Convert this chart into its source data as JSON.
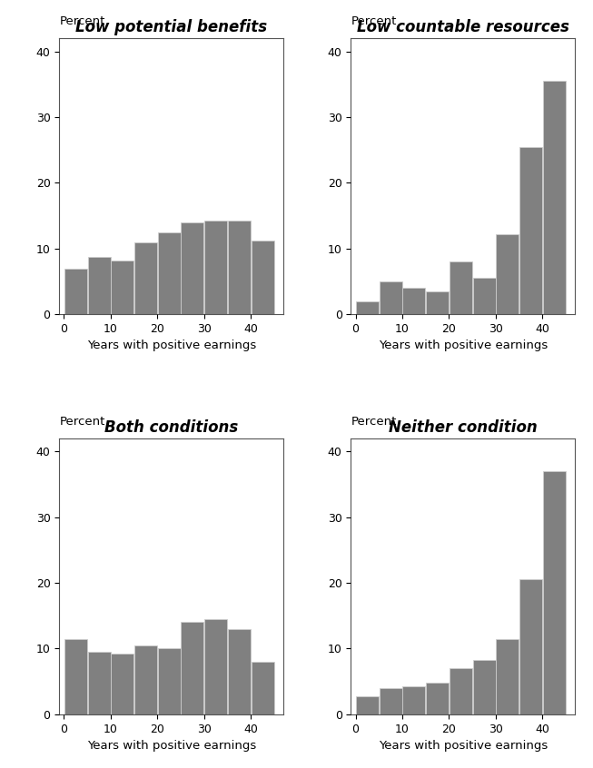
{
  "panels": [
    {
      "title": "Low potential benefits",
      "values": [
        7.0,
        8.8,
        8.2,
        11.0,
        12.5,
        14.0,
        14.2,
        14.2,
        11.2
      ],
      "ylabel": "Percent",
      "xlabel": "Years with positive earnings",
      "ylim": [
        0,
        42
      ],
      "yticks": [
        0,
        10,
        20,
        30,
        40
      ]
    },
    {
      "title": "Low countable resources",
      "values": [
        2.0,
        5.0,
        4.0,
        3.5,
        8.0,
        5.5,
        12.2,
        25.5,
        35.5
      ],
      "ylabel": "Percent",
      "xlabel": "Years with positive earnings",
      "ylim": [
        0,
        42
      ],
      "yticks": [
        0,
        10,
        20,
        30,
        40
      ]
    },
    {
      "title": "Both conditions",
      "values": [
        11.5,
        9.5,
        9.2,
        10.5,
        10.0,
        14.0,
        14.5,
        13.0,
        8.0
      ],
      "ylabel": "Percent",
      "xlabel": "Years with positive earnings",
      "ylim": [
        0,
        42
      ],
      "yticks": [
        0,
        10,
        20,
        30,
        40
      ]
    },
    {
      "title": "Neither condition",
      "values": [
        2.8,
        4.0,
        4.2,
        4.8,
        7.0,
        8.2,
        11.5,
        20.5,
        37.0
      ],
      "ylabel": "Percent",
      "xlabel": "Years with positive earnings",
      "ylim": [
        0,
        42
      ],
      "yticks": [
        0,
        10,
        20,
        30,
        40
      ]
    }
  ],
  "bar_color": "#808080",
  "bar_edge_color": "#cccccc",
  "background_color": "#ffffff",
  "bin_edges": [
    0,
    5,
    10,
    15,
    20,
    25,
    30,
    35,
    40,
    45
  ],
  "xticks": [
    0,
    10,
    20,
    30,
    40
  ],
  "title_fontsize": 12,
  "label_fontsize": 9.5,
  "tick_fontsize": 9,
  "percent_fontsize": 9.5
}
